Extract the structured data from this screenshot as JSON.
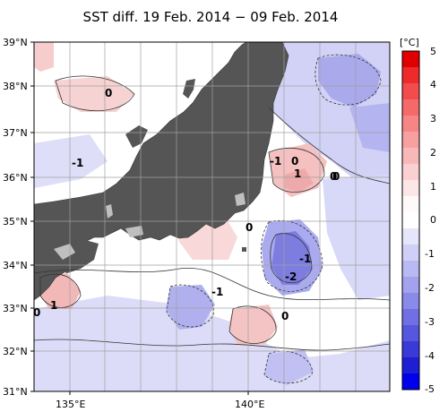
{
  "title": "SST diff. 19 Feb. 2014 − 09 Feb. 2014",
  "map": {
    "lat_labels": [
      "39°N",
      "38°N",
      "37°N",
      "36°N",
      "35°N",
      "34°N",
      "33°N",
      "32°N",
      "31°N"
    ],
    "lon_labels": [
      "135°E",
      "140°E"
    ],
    "contour_labels": [
      "0",
      "-1",
      "-1",
      "0",
      "1",
      "0",
      "0",
      "-1",
      "-2",
      "-1",
      "0",
      "1",
      "0",
      "0"
    ]
  },
  "colorbar": {
    "unit": "[°C]",
    "ticks": [
      "5",
      "4",
      "3",
      "2",
      "1",
      "0",
      "-1",
      "-2",
      "-3",
      "-4",
      "-5"
    ]
  },
  "colors": {
    "land": "#555555",
    "lake": "#bfbfbf",
    "warm": "#f4b4b4",
    "cool": "#b4b4f0",
    "grid": "#a0a0a0"
  }
}
